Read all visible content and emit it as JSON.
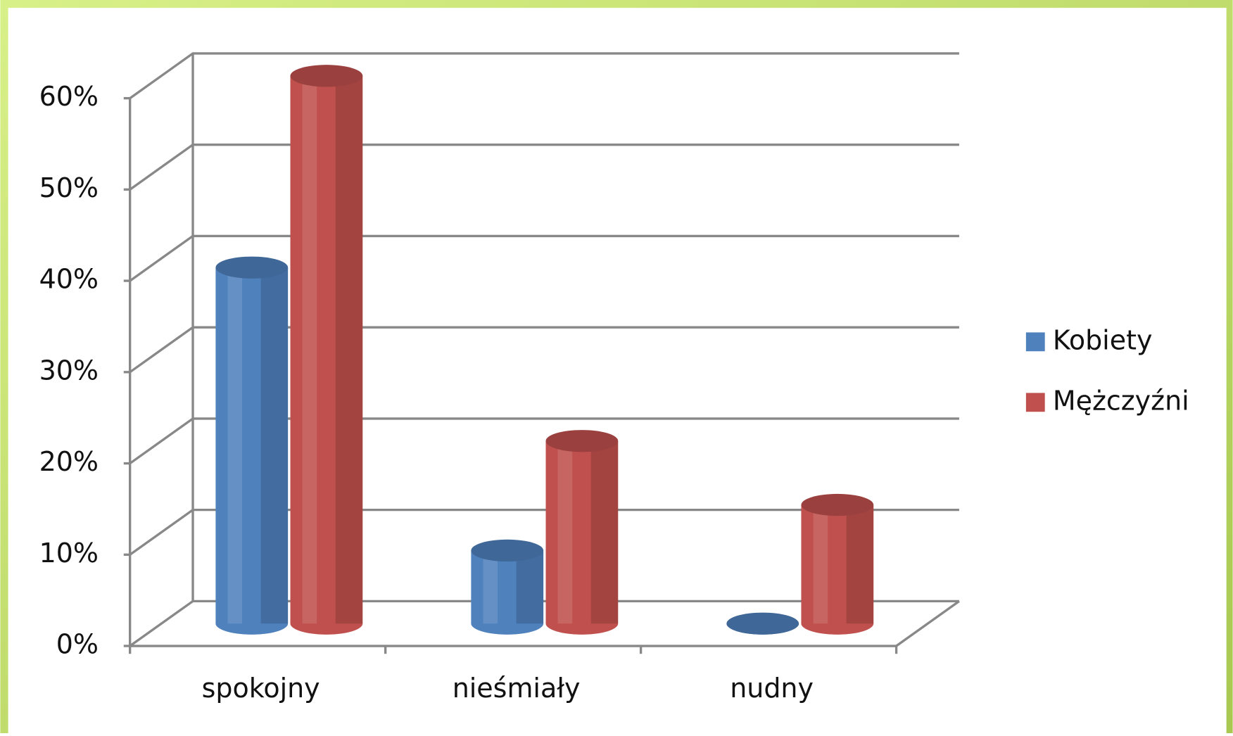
{
  "chart_data": {
    "type": "bar3d",
    "categories": [
      "spokojny",
      "nieśmiały",
      "nudny"
    ],
    "series": [
      {
        "name": "Kobiety",
        "color": "#4f81bd",
        "values": [
          39,
          8,
          0
        ]
      },
      {
        "name": "Mężczyźni",
        "color": "#c0504d",
        "values": [
          60,
          20,
          13
        ]
      }
    ],
    "ylim": [
      0,
      60
    ],
    "yticks": [
      {
        "value": 0,
        "label": "0%"
      },
      {
        "value": 10,
        "label": "10%"
      },
      {
        "value": 20,
        "label": "20%"
      },
      {
        "value": 30,
        "label": "30%"
      },
      {
        "value": 40,
        "label": "40%"
      },
      {
        "value": 50,
        "label": "50%"
      },
      {
        "value": 60,
        "label": "60%"
      }
    ],
    "grid": true,
    "legend": "right"
  }
}
